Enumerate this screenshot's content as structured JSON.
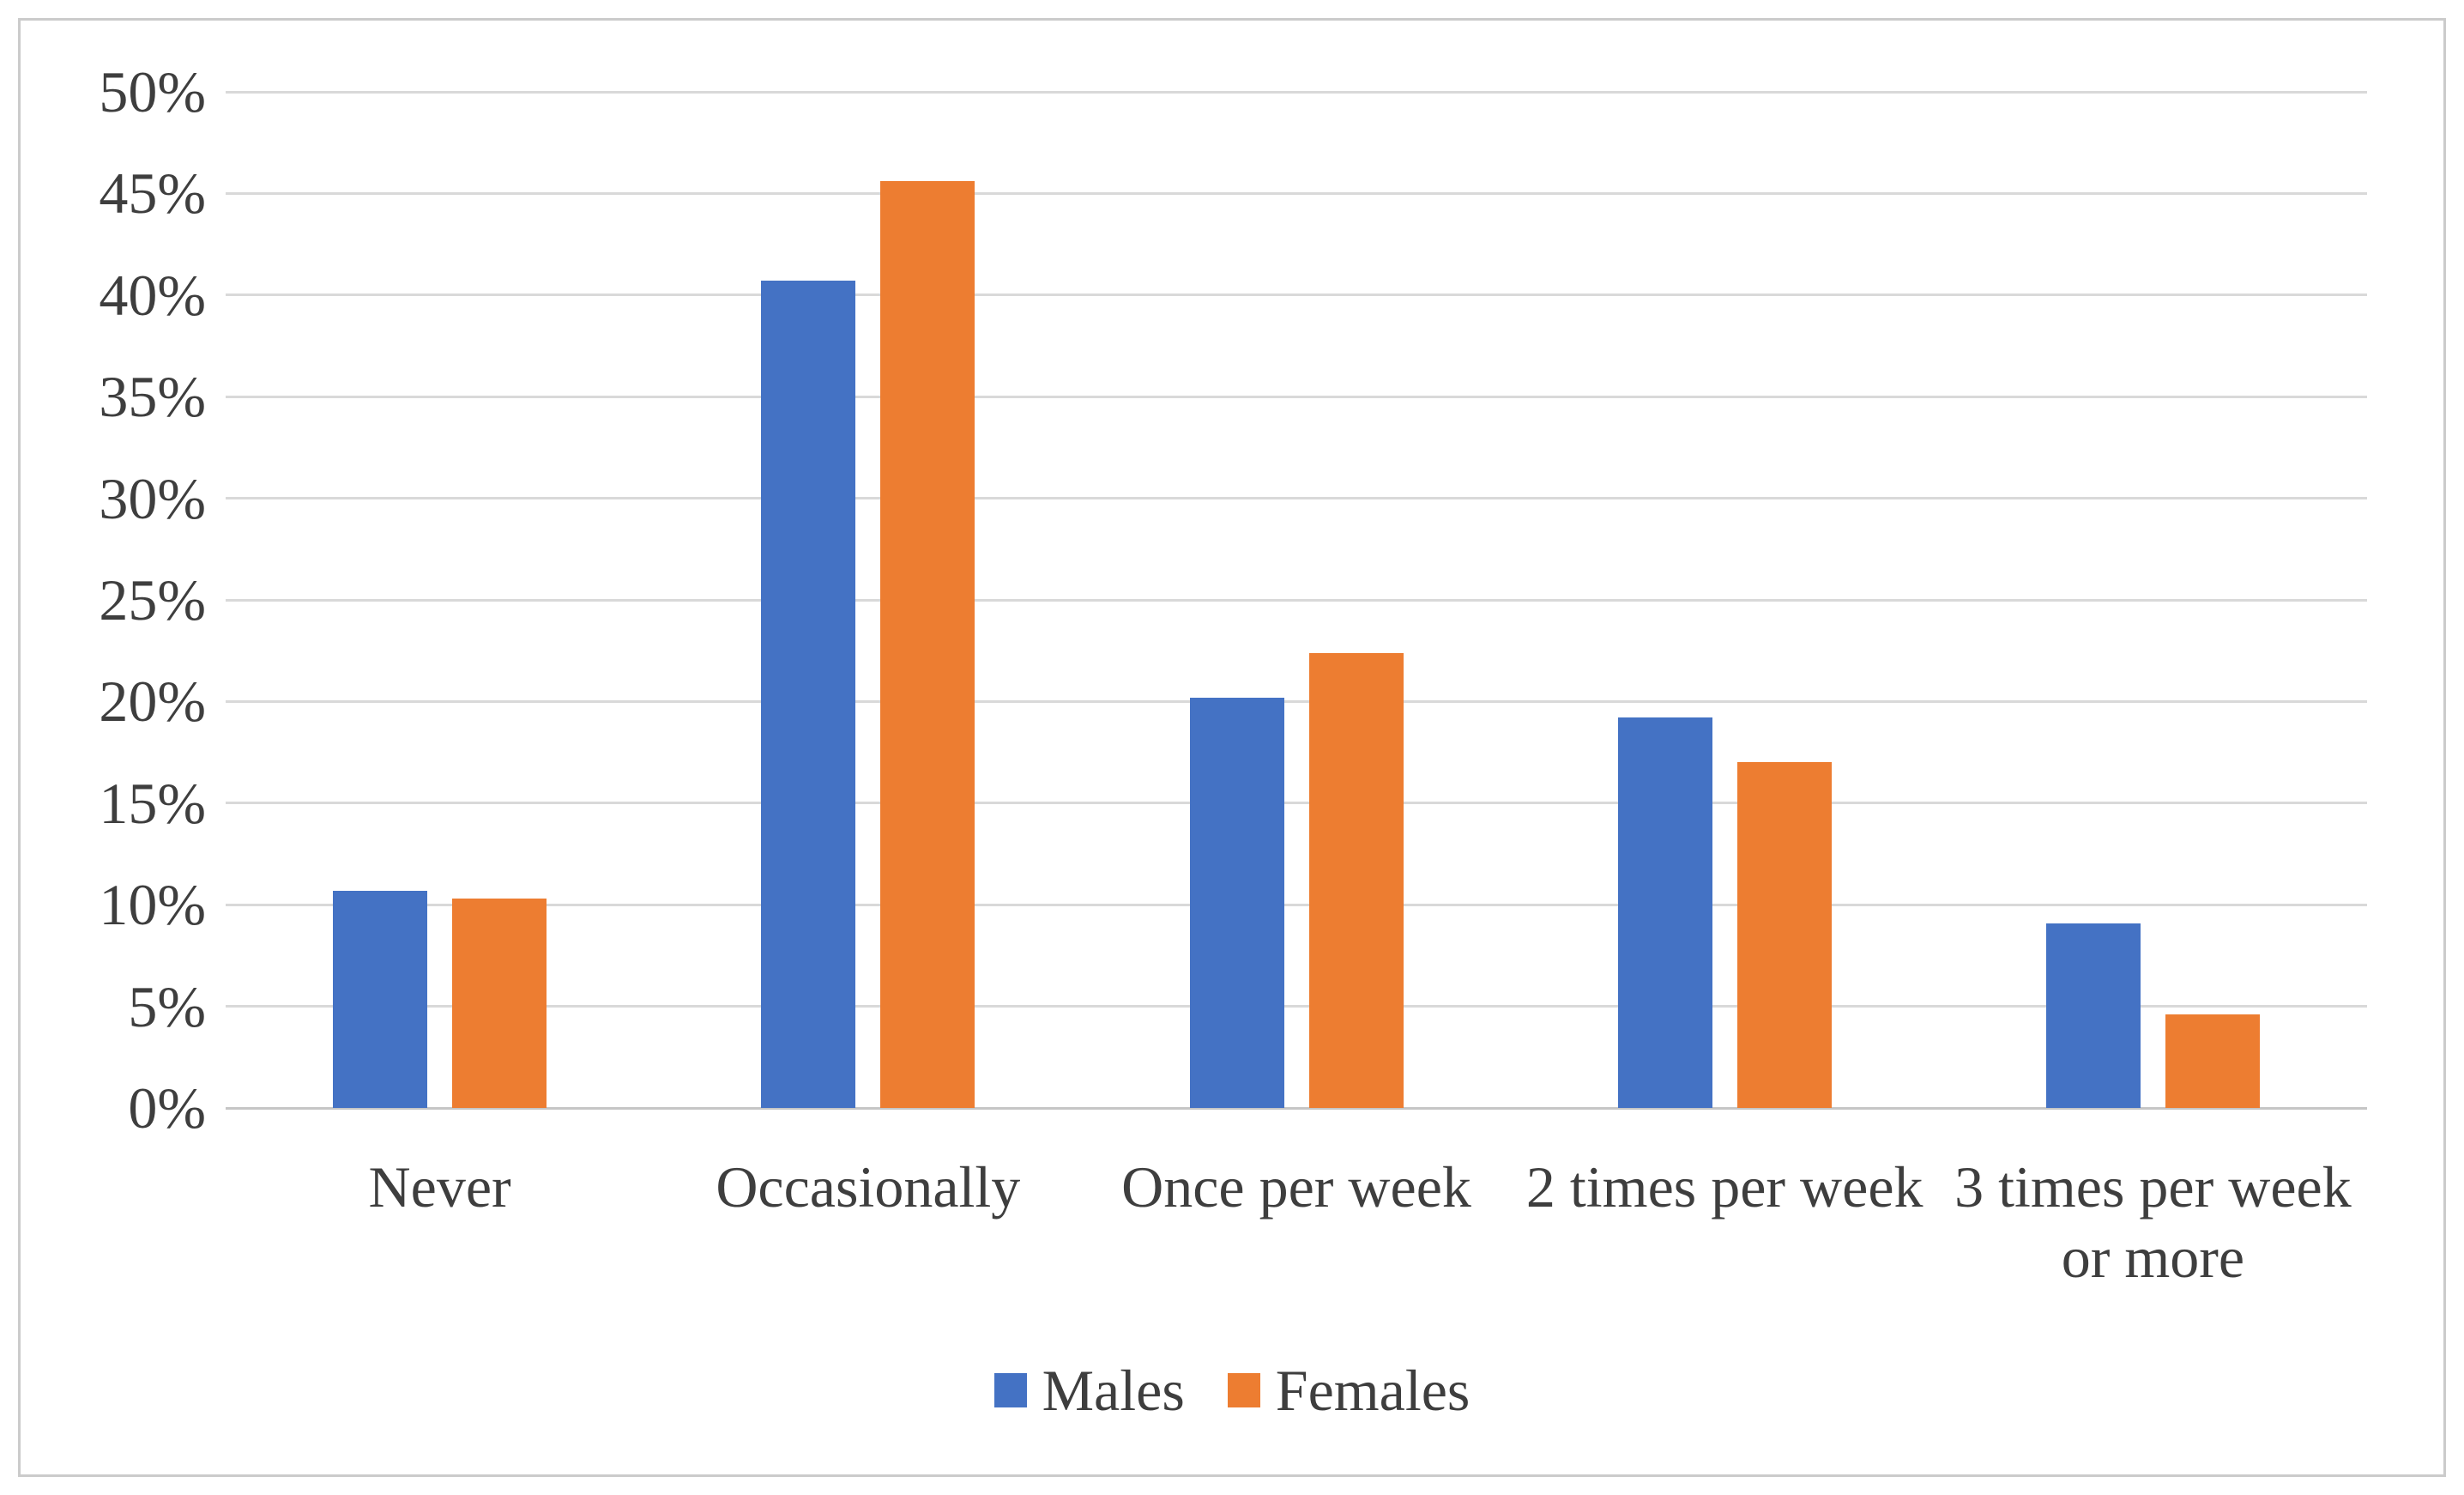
{
  "figure": {
    "background_color": "#FFFFFF",
    "frame_border_color": "#CBCBCB"
  },
  "chart_data": {
    "type": "bar",
    "title": "",
    "xlabel": "",
    "ylabel": "",
    "categories": [
      "Never",
      "Occasionally",
      "Once per week",
      "2 times per week",
      "3 times per week or more"
    ],
    "series": [
      {
        "name": "Males",
        "color": "#4472C4",
        "values": [
          10.7,
          40.7,
          20.2,
          19.2,
          9.1
        ]
      },
      {
        "name": "Females",
        "color": "#ED7D31",
        "values": [
          10.3,
          45.6,
          22.4,
          17.0,
          4.6
        ]
      }
    ],
    "ylim": [
      0,
      50
    ],
    "ytick_step": 5,
    "ytick_labels": [
      "0%",
      "5%",
      "10%",
      "15%",
      "20%",
      "25%",
      "30%",
      "35%",
      "40%",
      "45%",
      "50%"
    ],
    "grid": true,
    "gridline_color": "#D9D9D9",
    "axis_line_color": "#C6C6C6",
    "text_color": "#3E3E3E",
    "legend_position": "bottom"
  }
}
